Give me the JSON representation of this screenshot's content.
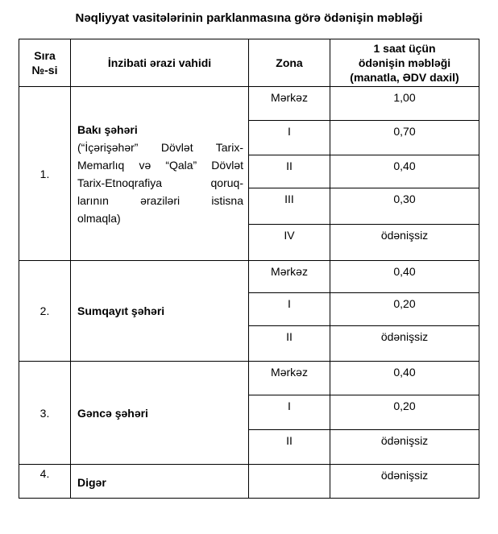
{
  "title": "Nəqliyyat vasitələrinin parklanmasına görə ödənişin məbləği",
  "table": {
    "headers": {
      "no_line1": "Sıra",
      "no_line2": "№-si",
      "unit": "İnzibati ərazi vahidi",
      "zone": "Zona",
      "fee_line1": "1 saat üçün",
      "fee_line2": "ödənişin məbləği",
      "fee_line3": "(manatla, ƏDV daxil)"
    },
    "rows": [
      {
        "no": "1.",
        "unit_title": "Bakı şəhəri",
        "note_lines": [
          "(“İçərişəhər” Dövlət Tarix-",
          "Memarlıq və “Qala” Dövlət",
          "Tarix-Etnoqrafiya qoruq-",
          "larının əraziləri istisna",
          "olmaqla)"
        ],
        "zones": [
          {
            "zone": "Mərkəz",
            "fee": "1,00"
          },
          {
            "zone": "I",
            "fee": "0,70"
          },
          {
            "zone": "II",
            "fee": "0,40"
          },
          {
            "zone": "III",
            "fee": "0,30"
          },
          {
            "zone": "IV",
            "fee": "ödənişsiz"
          }
        ]
      },
      {
        "no": "2.",
        "unit_title": "Sumqayıt şəhəri",
        "zones": [
          {
            "zone": "Mərkəz",
            "fee": "0,40"
          },
          {
            "zone": "I",
            "fee": "0,20"
          },
          {
            "zone": "II",
            "fee": "ödənişsiz"
          }
        ]
      },
      {
        "no": "3.",
        "unit_title": "Gəncə şəhəri",
        "zones": [
          {
            "zone": "Mərkəz",
            "fee": "0,40"
          },
          {
            "zone": "I",
            "fee": "0,20"
          },
          {
            "zone": "II",
            "fee": "ödənişsiz"
          }
        ]
      },
      {
        "no": "4.",
        "unit_title": "Digər",
        "zones": [
          {
            "zone": "",
            "fee": "ödənişsiz"
          }
        ]
      }
    ]
  }
}
